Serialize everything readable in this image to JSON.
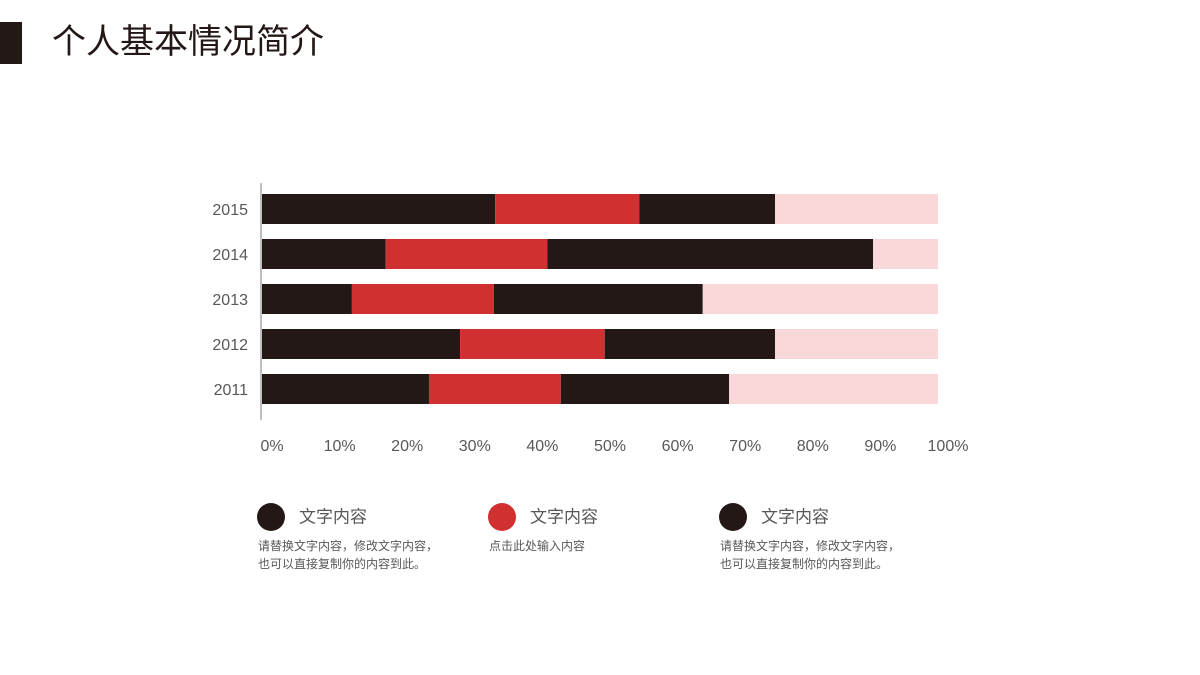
{
  "header": {
    "title": "个人基本情况简介"
  },
  "chart_data": {
    "type": "stacked-barh",
    "categories": [
      "2015",
      "2014",
      "2013",
      "2012",
      "2011"
    ],
    "series": [
      {
        "name": "文字内容",
        "color": "#231815",
        "description": [
          "请替换文字内容，修改文字内容，",
          "也可以直接复制你的内容到此。"
        ],
        "values": [
          34.5,
          18.3,
          13.3,
          29.3,
          24.7
        ]
      },
      {
        "name": "文字内容",
        "color": "#d0302f",
        "description": [
          "点击此处输入内容"
        ],
        "values": [
          21.3,
          23.9,
          21.0,
          21.4,
          19.5
        ]
      },
      {
        "name": "文字内容",
        "color": "#231815",
        "description": [
          "请替换文字内容，修改文字内容，",
          "也可以直接复制你的内容到此。"
        ],
        "values": [
          20.1,
          48.2,
          30.9,
          25.2,
          24.9
        ]
      },
      {
        "color": "#f8d8d8",
        "values": [
          24.1,
          9.6,
          34.8,
          24.1,
          30.9
        ]
      }
    ],
    "xlim": [
      0,
      100
    ],
    "xticks": [
      {
        "value": 0,
        "label": "0%"
      },
      {
        "value": 10,
        "label": "10%"
      },
      {
        "value": 20,
        "label": "20%"
      },
      {
        "value": 30,
        "label": "30%"
      },
      {
        "value": 40,
        "label": "40%"
      },
      {
        "value": 50,
        "label": "50%"
      },
      {
        "value": 60,
        "label": "60%"
      },
      {
        "value": 70,
        "label": "70%"
      },
      {
        "value": 80,
        "label": "80%"
      },
      {
        "value": 90,
        "label": "90%"
      },
      {
        "value": 100,
        "label": "100%"
      }
    ],
    "grid": false
  }
}
